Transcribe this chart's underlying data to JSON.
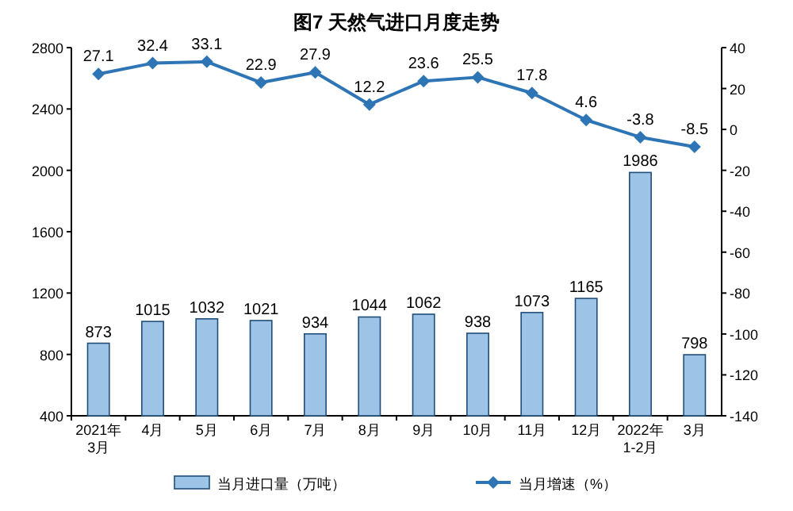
{
  "chart_data": {
    "type": "bar",
    "title": "图7  天然气进口月度走势",
    "categories": [
      "2021年\n3月",
      "4月",
      "5月",
      "6月",
      "7月",
      "8月",
      "9月",
      "10月",
      "11月",
      "12月",
      "2022年\n1-2月",
      "3月"
    ],
    "series": [
      {
        "name": "当月进口量（万吨）",
        "color": "#9dc3e6",
        "values": [
          873,
          1015,
          1032,
          1021,
          934,
          1044,
          1062,
          938,
          1073,
          1165,
          1986,
          798
        ]
      },
      {
        "name": "当月增速（%）",
        "type": "line",
        "axis": "y2",
        "marker": "diamond",
        "color": "#2e75b6",
        "values": [
          27.1,
          32.4,
          33.1,
          22.9,
          27.9,
          12.2,
          23.6,
          25.5,
          17.8,
          4.6,
          -3.8,
          -8.5
        ]
      }
    ],
    "ylim": [
      400,
      2800
    ],
    "yticks": [
      400,
      800,
      1200,
      1600,
      2000,
      2400,
      2800
    ],
    "y2lim": [
      -140,
      40
    ],
    "y2ticks": [
      -140,
      -120,
      -100,
      -80,
      -60,
      -40,
      -20,
      0,
      20,
      40
    ],
    "data_labels": true,
    "legend": "bottom",
    "grid": false
  }
}
